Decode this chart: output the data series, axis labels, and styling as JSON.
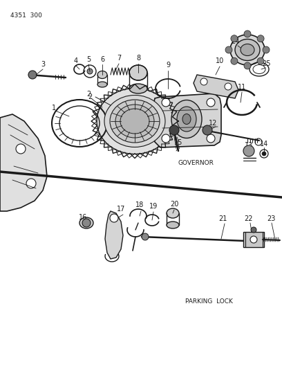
{
  "page_ref": "4351  300",
  "governor_label": "GOVERNOR",
  "parking_label": "PARKING  LOCK",
  "bg_color": "#ffffff",
  "line_color": "#1a1a1a",
  "fig_width": 4.08,
  "fig_height": 5.33,
  "dpi": 100
}
